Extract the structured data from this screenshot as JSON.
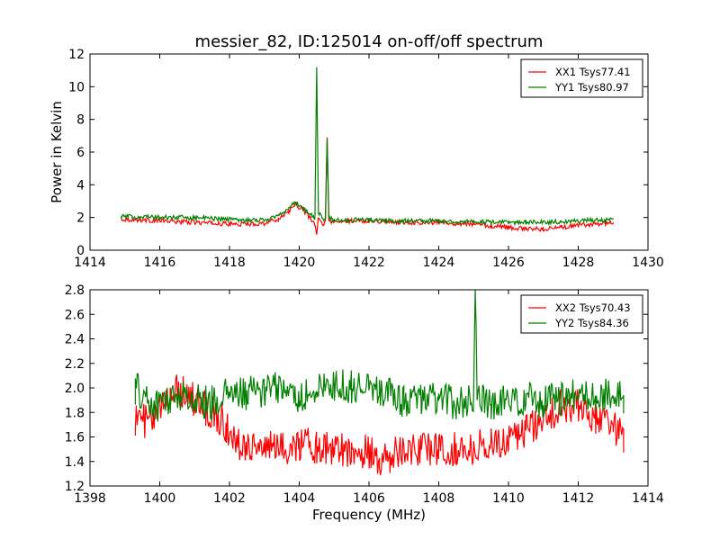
{
  "title": "messier_82, ID:125014 on-off/off spectrum",
  "colors": {
    "xx": "#ff0000",
    "yy": "#008000",
    "axis": "#000000",
    "background": "#ffffff"
  },
  "chart_data": [
    {
      "type": "line",
      "title": "messier_82, ID:125014 on-off/off spectrum",
      "xlabel": "",
      "ylabel": "Power in Kelvin",
      "xlim": [
        1414,
        1430
      ],
      "ylim": [
        0,
        12
      ],
      "xticks": [
        "1414",
        "1416",
        "1418",
        "1420",
        "1422",
        "1424",
        "1426",
        "1428",
        "1430"
      ],
      "yticks": [
        "0",
        "2",
        "4",
        "6",
        "8",
        "10",
        "12"
      ],
      "grid": false,
      "legend_position": "top-right",
      "x_range": [
        1414.9,
        1429.0
      ],
      "series": [
        {
          "name": "XX1 Tsys77.41",
          "color": "#ff0000",
          "points": [
            [
              1414.9,
              1.9
            ],
            [
              1415.5,
              1.85
            ],
            [
              1416.0,
              1.8
            ],
            [
              1416.5,
              1.75
            ],
            [
              1417.0,
              1.7
            ],
            [
              1417.5,
              1.65
            ],
            [
              1418.0,
              1.6
            ],
            [
              1418.5,
              1.6
            ],
            [
              1419.0,
              1.65
            ],
            [
              1419.4,
              1.9
            ],
            [
              1419.7,
              2.4
            ],
            [
              1419.9,
              2.8
            ],
            [
              1420.1,
              2.5
            ],
            [
              1420.3,
              2.0
            ],
            [
              1420.45,
              1.5
            ],
            [
              1420.5,
              1.0
            ],
            [
              1420.55,
              2.0
            ],
            [
              1420.65,
              1.6
            ],
            [
              1420.75,
              1.7
            ],
            [
              1420.8,
              6.9
            ],
            [
              1420.85,
              1.8
            ],
            [
              1421.0,
              1.7
            ],
            [
              1421.5,
              1.8
            ],
            [
              1422.0,
              1.8
            ],
            [
              1422.5,
              1.75
            ],
            [
              1423.0,
              1.7
            ],
            [
              1423.5,
              1.7
            ],
            [
              1424.0,
              1.7
            ],
            [
              1424.5,
              1.65
            ],
            [
              1425.0,
              1.6
            ],
            [
              1425.5,
              1.5
            ],
            [
              1426.0,
              1.4
            ],
            [
              1426.5,
              1.3
            ],
            [
              1427.0,
              1.3
            ],
            [
              1427.5,
              1.4
            ],
            [
              1428.0,
              1.5
            ],
            [
              1428.5,
              1.6
            ],
            [
              1429.0,
              1.7
            ]
          ]
        },
        {
          "name": "YY1 Tsys80.97",
          "color": "#008000",
          "points": [
            [
              1414.9,
              2.05
            ],
            [
              1415.5,
              2.05
            ],
            [
              1416.0,
              2.0
            ],
            [
              1416.5,
              2.0
            ],
            [
              1417.0,
              2.0
            ],
            [
              1417.5,
              1.95
            ],
            [
              1418.0,
              1.9
            ],
            [
              1418.5,
              1.85
            ],
            [
              1419.0,
              1.85
            ],
            [
              1419.4,
              2.1
            ],
            [
              1419.7,
              2.6
            ],
            [
              1419.9,
              2.9
            ],
            [
              1420.1,
              2.6
            ],
            [
              1420.3,
              2.2
            ],
            [
              1420.45,
              2.0
            ],
            [
              1420.5,
              11.2
            ],
            [
              1420.55,
              2.3
            ],
            [
              1420.65,
              2.0
            ],
            [
              1420.75,
              1.9
            ],
            [
              1420.8,
              6.8
            ],
            [
              1420.85,
              2.0
            ],
            [
              1421.0,
              1.8
            ],
            [
              1421.5,
              1.85
            ],
            [
              1422.0,
              1.85
            ],
            [
              1422.5,
              1.8
            ],
            [
              1423.0,
              1.8
            ],
            [
              1423.5,
              1.8
            ],
            [
              1424.0,
              1.8
            ],
            [
              1424.5,
              1.75
            ],
            [
              1425.0,
              1.75
            ],
            [
              1425.5,
              1.7
            ],
            [
              1426.0,
              1.7
            ],
            [
              1426.5,
              1.7
            ],
            [
              1427.0,
              1.7
            ],
            [
              1427.5,
              1.75
            ],
            [
              1428.0,
              1.8
            ],
            [
              1428.5,
              1.85
            ],
            [
              1429.0,
              1.85
            ]
          ]
        }
      ]
    },
    {
      "type": "line",
      "title": "",
      "xlabel": "Frequency (MHz)",
      "ylabel": "",
      "xlim": [
        1398,
        1414
      ],
      "ylim": [
        1.2,
        2.8
      ],
      "xticks": [
        "1398",
        "1400",
        "1402",
        "1404",
        "1406",
        "1408",
        "1410",
        "1412",
        "1414"
      ],
      "yticks": [
        "1.2",
        "1.4",
        "1.6",
        "1.8",
        "2.0",
        "2.2",
        "2.4",
        "2.6",
        "2.8"
      ],
      "grid": false,
      "legend_position": "top-right",
      "x_range": [
        1399.3,
        1413.3
      ],
      "series": [
        {
          "name": "XX2 Tsys70.43",
          "color": "#ff0000",
          "points": [
            [
              1399.3,
              1.75
            ],
            [
              1399.8,
              1.72
            ],
            [
              1400.3,
              1.95
            ],
            [
              1400.6,
              2.0
            ],
            [
              1401.0,
              1.9
            ],
            [
              1401.5,
              1.8
            ],
            [
              1401.9,
              1.7
            ],
            [
              1402.1,
              1.55
            ],
            [
              1402.5,
              1.55
            ],
            [
              1403.0,
              1.52
            ],
            [
              1403.5,
              1.5
            ],
            [
              1404.0,
              1.55
            ],
            [
              1404.5,
              1.52
            ],
            [
              1405.0,
              1.5
            ],
            [
              1405.5,
              1.5
            ],
            [
              1406.0,
              1.48
            ],
            [
              1406.3,
              1.4
            ],
            [
              1406.6,
              1.45
            ],
            [
              1407.0,
              1.5
            ],
            [
              1407.5,
              1.5
            ],
            [
              1408.0,
              1.5
            ],
            [
              1408.5,
              1.5
            ],
            [
              1409.0,
              1.5
            ],
            [
              1409.5,
              1.55
            ],
            [
              1410.0,
              1.6
            ],
            [
              1410.5,
              1.65
            ],
            [
              1411.0,
              1.75
            ],
            [
              1411.5,
              1.85
            ],
            [
              1412.0,
              1.85
            ],
            [
              1412.5,
              1.75
            ],
            [
              1413.0,
              1.7
            ],
            [
              1413.3,
              1.6
            ]
          ]
        },
        {
          "name": "YY2 Tsys84.36",
          "color": "#008000",
          "points": [
            [
              1399.3,
              2.0
            ],
            [
              1399.8,
              1.85
            ],
            [
              1400.3,
              1.9
            ],
            [
              1400.6,
              1.95
            ],
            [
              1401.0,
              1.9
            ],
            [
              1401.5,
              1.88
            ],
            [
              1402.0,
              1.95
            ],
            [
              1402.5,
              1.95
            ],
            [
              1403.0,
              1.98
            ],
            [
              1403.5,
              2.0
            ],
            [
              1404.0,
              1.92
            ],
            [
              1404.5,
              1.98
            ],
            [
              1405.0,
              2.02
            ],
            [
              1405.5,
              2.0
            ],
            [
              1406.0,
              2.05
            ],
            [
              1406.3,
              2.0
            ],
            [
              1406.6,
              1.95
            ],
            [
              1407.0,
              1.9
            ],
            [
              1407.5,
              1.92
            ],
            [
              1408.0,
              1.9
            ],
            [
              1408.5,
              1.88
            ],
            [
              1409.0,
              1.9
            ],
            [
              1409.05,
              2.75
            ],
            [
              1409.1,
              1.9
            ],
            [
              1409.5,
              1.88
            ],
            [
              1410.0,
              1.9
            ],
            [
              1410.5,
              1.9
            ],
            [
              1411.0,
              1.9
            ],
            [
              1411.5,
              1.92
            ],
            [
              1412.0,
              1.95
            ],
            [
              1412.5,
              1.92
            ],
            [
              1413.0,
              1.95
            ],
            [
              1413.3,
              1.9
            ]
          ]
        }
      ]
    }
  ]
}
